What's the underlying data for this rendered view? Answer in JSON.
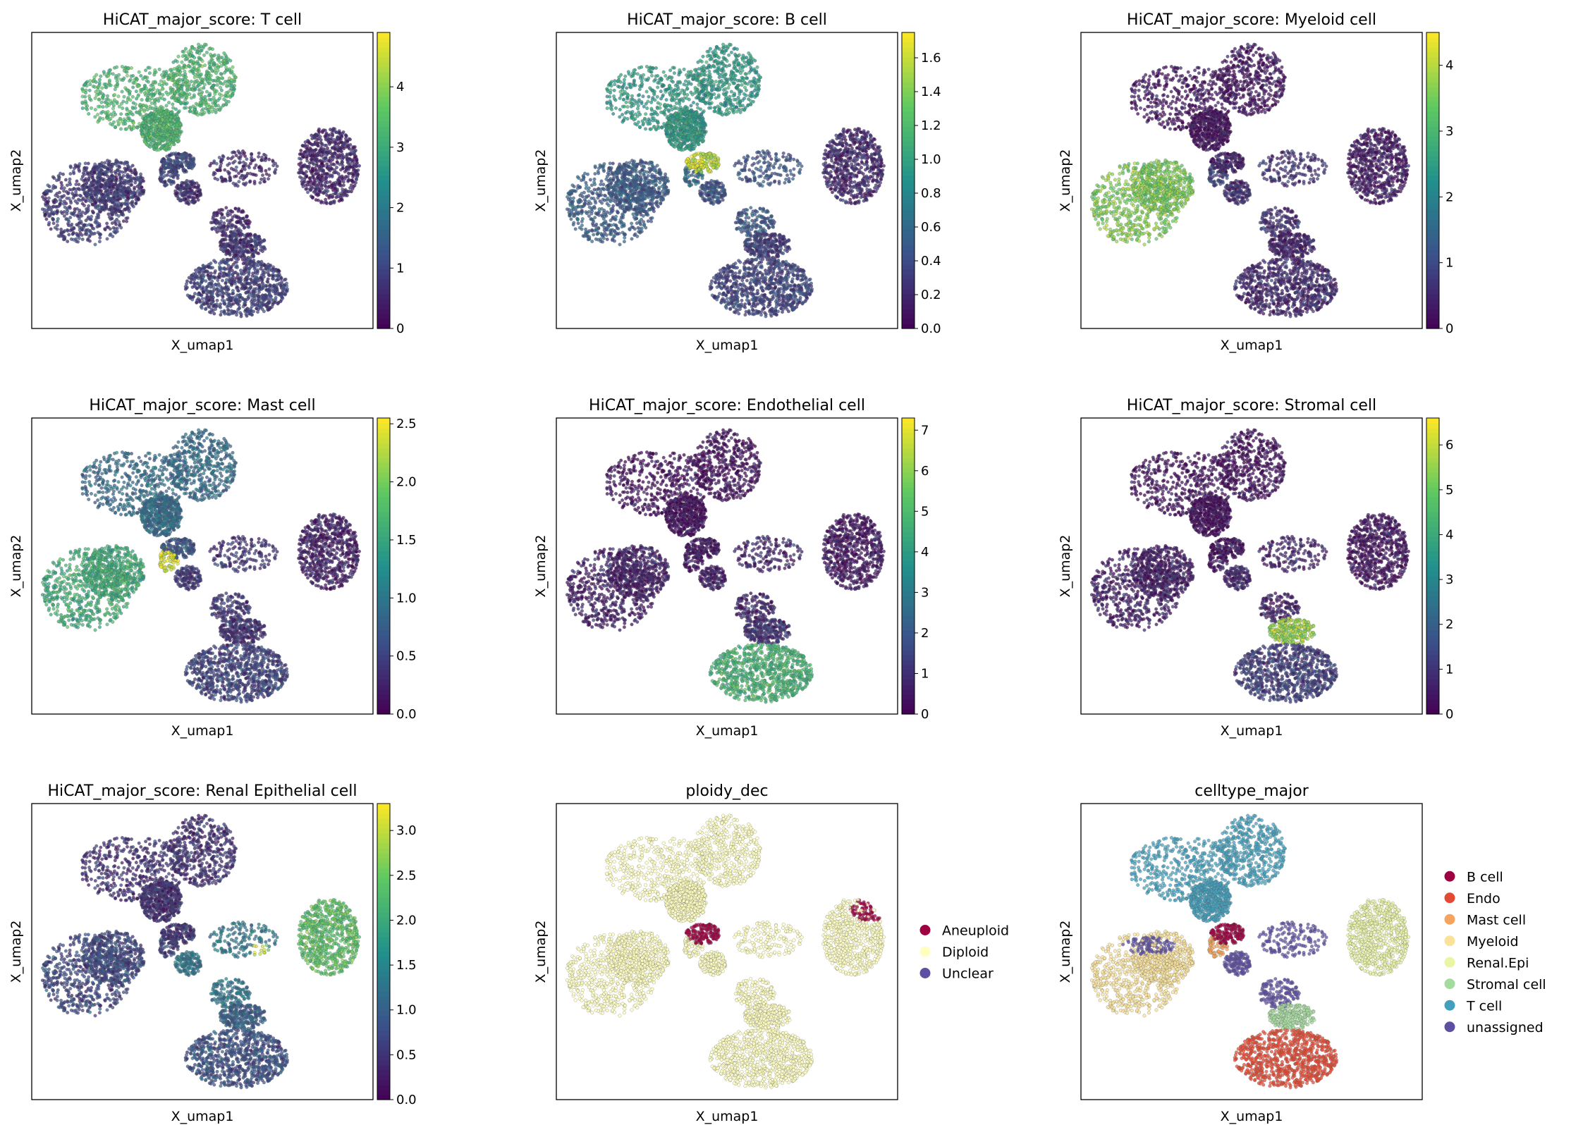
{
  "figure": {
    "continuous_colormap": [
      "#440154",
      "#3b528b",
      "#21918c",
      "#5ec962",
      "#fde725"
    ],
    "point_alpha": 0.72
  },
  "chart_data": [
    {
      "type": "scatter",
      "title": "HiCAT_major_score: T cell",
      "xlabel": "X_umap1",
      "ylabel": "X_umap2",
      "colorbar": {
        "min": 0,
        "max": 4.9,
        "ticks": [
          0,
          1,
          2,
          3,
          4
        ],
        "tick_labels": [
          "0",
          "1",
          "2",
          "3",
          "4"
        ]
      },
      "cluster_scores": {
        "T": 3.3,
        "Myeloid": 0.8,
        "Mast": 1.0,
        "B": 1.1,
        "Unassigned": 0.6,
        "Renal": 0.5,
        "Stromal": 0.7,
        "Endo": 0.9
      },
      "hotspots": []
    },
    {
      "type": "scatter",
      "title": "HiCAT_major_score: B cell",
      "xlabel": "X_umap1",
      "ylabel": "X_umap2",
      "colorbar": {
        "min": 0,
        "max": 1.75,
        "ticks": [
          0,
          0.2,
          0.4,
          0.6,
          0.8,
          1.0,
          1.2,
          1.4,
          1.6
        ],
        "tick_labels": [
          "0.0",
          "0.2",
          "0.4",
          "0.6",
          "0.8",
          "1.0",
          "1.2",
          "1.4",
          "1.6"
        ]
      },
      "cluster_scores": {
        "T": 0.95,
        "Myeloid": 0.5,
        "Mast": 0.6,
        "B": 1.55,
        "Unassigned": 0.45,
        "Renal": 0.2,
        "Stromal": 0.3,
        "Endo": 0.35
      },
      "hotspots": [
        "B"
      ]
    },
    {
      "type": "scatter",
      "title": "HiCAT_major_score: Myeloid cell",
      "xlabel": "X_umap1",
      "ylabel": "X_umap2",
      "colorbar": {
        "min": 0,
        "max": 4.5,
        "ticks": [
          0,
          1,
          2,
          3,
          4
        ],
        "tick_labels": [
          "0",
          "1",
          "2",
          "3",
          "4"
        ]
      },
      "cluster_scores": {
        "T": 0.2,
        "Myeloid": 3.6,
        "Mast": 0.9,
        "B": 0.4,
        "Unassigned": 0.6,
        "Renal": 0.3,
        "Stromal": 0.4,
        "Endo": 0.5
      },
      "hotspots": []
    },
    {
      "type": "scatter",
      "title": "HiCAT_major_score: Mast cell",
      "xlabel": "X_umap1",
      "ylabel": "X_umap2",
      "colorbar": {
        "min": 0,
        "max": 2.55,
        "ticks": [
          0,
          0.5,
          1.0,
          1.5,
          2.0,
          2.5
        ],
        "tick_labels": [
          "0.0",
          "0.5",
          "1.0",
          "1.5",
          "2.0",
          "2.5"
        ]
      },
      "cluster_scores": {
        "T": 0.9,
        "Myeloid": 1.6,
        "Mast": 2.4,
        "B": 0.7,
        "Unassigned": 0.4,
        "Renal": 0.2,
        "Stromal": 0.35,
        "Endo": 0.5
      },
      "hotspots": [
        "Mast"
      ]
    },
    {
      "type": "scatter",
      "title": "HiCAT_major_score: Endothelial cell",
      "xlabel": "X_umap1",
      "ylabel": "X_umap2",
      "colorbar": {
        "min": 0,
        "max": 7.3,
        "ticks": [
          0,
          1,
          2,
          3,
          4,
          5,
          6,
          7
        ],
        "tick_labels": [
          "0",
          "1",
          "2",
          "3",
          "4",
          "5",
          "6",
          "7"
        ]
      },
      "cluster_scores": {
        "T": 0.2,
        "Myeloid": 0.6,
        "Mast": 0.4,
        "B": 0.4,
        "Unassigned": 0.7,
        "Renal": 0.4,
        "Stromal": 1.0,
        "Endo": 4.8
      },
      "hotspots": []
    },
    {
      "type": "scatter",
      "title": "HiCAT_major_score: Stromal cell",
      "xlabel": "X_umap1",
      "ylabel": "X_umap2",
      "colorbar": {
        "min": 0,
        "max": 6.6,
        "ticks": [
          0,
          1,
          2,
          3,
          4,
          5,
          6
        ],
        "tick_labels": [
          "0",
          "1",
          "2",
          "3",
          "4",
          "5",
          "6"
        ]
      },
      "cluster_scores": {
        "T": 0.2,
        "Myeloid": 0.5,
        "Mast": 0.4,
        "B": 0.3,
        "Unassigned": 0.6,
        "Renal": 0.3,
        "Stromal": 5.6,
        "Endo": 1.2
      },
      "hotspots": []
    },
    {
      "type": "scatter",
      "title": "HiCAT_major_score: Renal Epithelial cell",
      "xlabel": "X_umap1",
      "ylabel": "X_umap2",
      "colorbar": {
        "min": 0,
        "max": 3.3,
        "ticks": [
          0,
          0.5,
          1.0,
          1.5,
          2.0,
          2.5,
          3.0
        ],
        "tick_labels": [
          "0.0",
          "0.5",
          "1.0",
          "1.5",
          "2.0",
          "2.5",
          "3.0"
        ]
      },
      "cluster_scores": {
        "T": 0.45,
        "Myeloid": 0.7,
        "Mast": 0.6,
        "B": 0.5,
        "Unassigned": 1.3,
        "Renal": 2.4,
        "Stromal": 1.0,
        "Endo": 0.8
      },
      "hotspots": [
        "RenalSmall"
      ]
    },
    {
      "type": "scatter",
      "title": "ploidy_dec",
      "xlabel": "X_umap1",
      "ylabel": "X_umap2",
      "legend": [
        {
          "label": "Aneuploid",
          "color": "#9e0142"
        },
        {
          "label": "Diploid",
          "color": "#ffffbf"
        },
        {
          "label": "Unclear",
          "color": "#5e4fa2"
        }
      ],
      "categorical_assignment": {
        "T": "Diploid",
        "Myeloid": "Diploid",
        "Mast": "Diploid",
        "B": "Aneuploid",
        "Unassigned": "Diploid",
        "Renal": "Diploid",
        "Stromal": "Diploid",
        "Endo": "Diploid"
      },
      "hotspots": [
        "RenalTop"
      ]
    },
    {
      "type": "scatter",
      "title": "celltype_major",
      "xlabel": "X_umap1",
      "ylabel": "X_umap2",
      "legend": [
        {
          "label": "B cell",
          "color": "#9e0142"
        },
        {
          "label": "Endo",
          "color": "#e34a33"
        },
        {
          "label": "Mast cell",
          "color": "#f4a45c"
        },
        {
          "label": "Myeloid",
          "color": "#fae29a"
        },
        {
          "label": "Renal.Epi",
          "color": "#eaf5a6"
        },
        {
          "label": "Stromal cell",
          "color": "#a6dba0"
        },
        {
          "label": "T cell",
          "color": "#42a0bd"
        },
        {
          "label": "unassigned",
          "color": "#5e4fa2"
        }
      ],
      "categorical_assignment": {
        "T": "T cell",
        "Myeloid": "Myeloid",
        "Mast": "Mast cell",
        "B": "B cell",
        "Unassigned": "unassigned",
        "Renal": "Renal.Epi",
        "Stromal": "Stromal cell",
        "Endo": "Endo"
      },
      "hotspots": [
        "MyeloidUnassigned"
      ]
    }
  ]
}
